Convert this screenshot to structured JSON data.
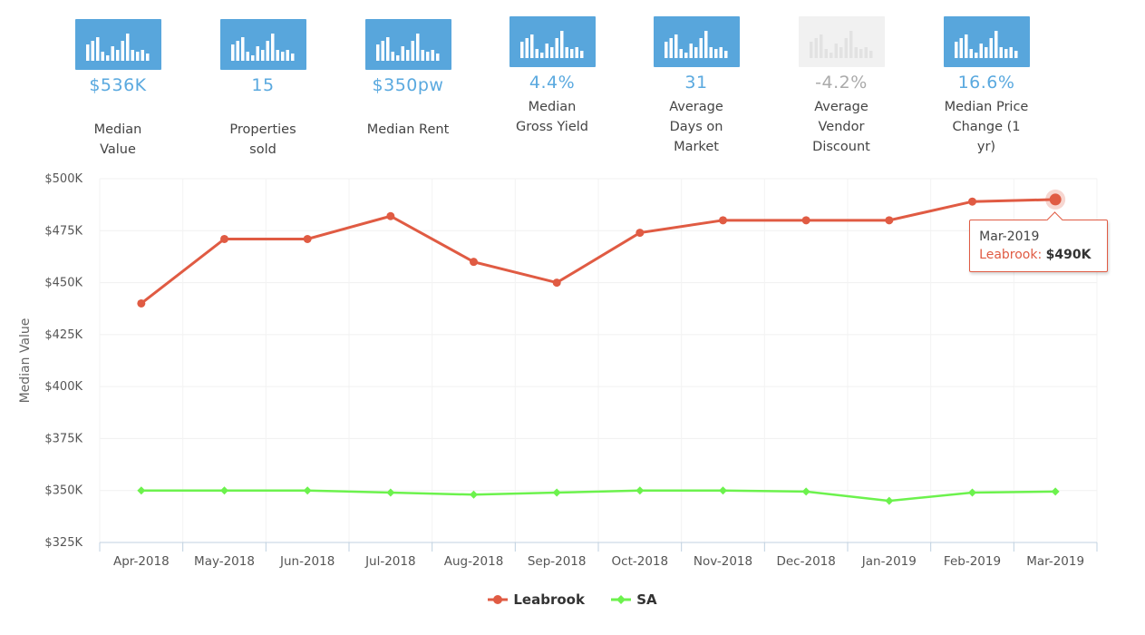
{
  "stats": [
    {
      "value": "$536K",
      "label": "Median Value",
      "disabled": false
    },
    {
      "value": "15",
      "label": "Properties sold",
      "disabled": false
    },
    {
      "value": "$350pw",
      "label": "Median Rent",
      "disabled": false
    },
    {
      "value": "4.4%",
      "label": "Median Gross Yield",
      "disabled": false
    },
    {
      "value": "31",
      "label": "Average Days on Market",
      "disabled": false
    },
    {
      "value": "-4.2%",
      "label": "Average Vendor Discount",
      "disabled": true
    },
    {
      "value": "16.6%",
      "label": "Median Price Change (1 yr)",
      "disabled": false
    }
  ],
  "colors": {
    "accent": "#5aa9df",
    "leabrook": "#e05b43",
    "sa": "#6cf24d",
    "thumb_active": "#58a6dc",
    "thumb_disabled": "#f1f1f1"
  },
  "chart_data": {
    "type": "line",
    "categories": [
      "Apr-2018",
      "May-2018",
      "Jun-2018",
      "Jul-2018",
      "Aug-2018",
      "Sep-2018",
      "Oct-2018",
      "Nov-2018",
      "Dec-2018",
      "Jan-2019",
      "Feb-2019",
      "Mar-2019"
    ],
    "series": [
      {
        "name": "Leabrook",
        "values": [
          440,
          471,
          471,
          482,
          460,
          450,
          474,
          480,
          480,
          480,
          489,
          490
        ]
      },
      {
        "name": "SA",
        "values": [
          350,
          350,
          350,
          349,
          348,
          349,
          350,
          350,
          349.5,
          345,
          349,
          349.5
        ]
      }
    ],
    "ylabel": "Median Value",
    "ylim": [
      325,
      500
    ],
    "yticks": [
      325,
      350,
      375,
      400,
      425,
      450,
      475,
      500
    ],
    "ytick_labels": [
      "$325K",
      "$350K",
      "$375K",
      "$400K",
      "$425K",
      "$450K",
      "$475K",
      "$500K"
    ],
    "grid": true,
    "legend_position": "bottom-center"
  },
  "tooltip": {
    "category": "Mar-2019",
    "series": "Leabrook",
    "sep": ": ",
    "value": "$490K"
  },
  "legend": [
    {
      "name": "Leabrook"
    },
    {
      "name": "SA"
    }
  ]
}
